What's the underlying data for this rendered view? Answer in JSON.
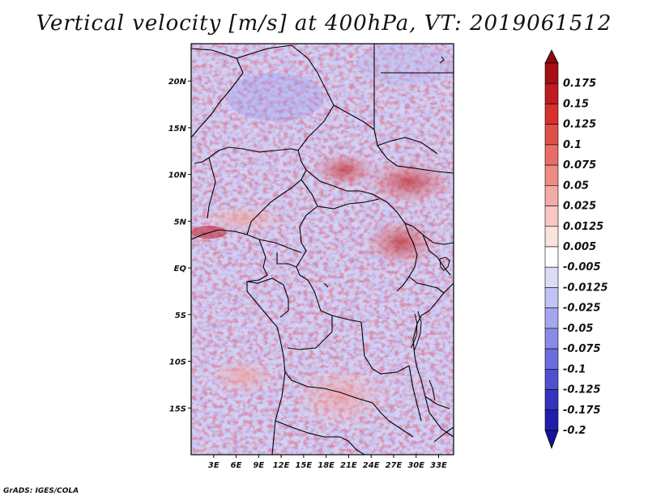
{
  "title": "Vertical velocity [m/s] at 400hPa, VT: 2019061512",
  "credit": "GrADS: IGES/COLA",
  "map": {
    "lon_range": [
      0,
      35
    ],
    "lat_range": [
      -20,
      24
    ],
    "lat_ticks": [
      {
        "value": 20,
        "label": "20N"
      },
      {
        "value": 15,
        "label": "15N"
      },
      {
        "value": 10,
        "label": "10N"
      },
      {
        "value": 5,
        "label": "5N"
      },
      {
        "value": 0,
        "label": "EQ"
      },
      {
        "value": -5,
        "label": "5S"
      },
      {
        "value": -10,
        "label": "10S"
      },
      {
        "value": -15,
        "label": "15S"
      }
    ],
    "lon_ticks": [
      {
        "value": 3,
        "label": "3E"
      },
      {
        "value": 6,
        "label": "6E"
      },
      {
        "value": 9,
        "label": "9E"
      },
      {
        "value": 12,
        "label": "12E"
      },
      {
        "value": 15,
        "label": "15E"
      },
      {
        "value": 18,
        "label": "18E"
      },
      {
        "value": 21,
        "label": "21E"
      },
      {
        "value": 24,
        "label": "24E"
      },
      {
        "value": 27,
        "label": "27E"
      },
      {
        "value": 30,
        "label": "30E"
      },
      {
        "value": 33,
        "label": "33E"
      }
    ]
  },
  "colorbar": {
    "levels": [
      {
        "label": "0.175",
        "color": "#a50f15"
      },
      {
        "label": "0.15",
        "color": "#c01a22"
      },
      {
        "label": "0.125",
        "color": "#d7302e"
      },
      {
        "label": "0.1",
        "color": "#e0504a"
      },
      {
        "label": "0.075",
        "color": "#e76d66"
      },
      {
        "label": "0.05",
        "color": "#ef8b84"
      },
      {
        "label": "0.025",
        "color": "#f4aba5"
      },
      {
        "label": "0.0125",
        "color": "#f8c7c2"
      },
      {
        "label": "0.005",
        "color": "#fbe2df"
      },
      {
        "label": "-0.005",
        "color": "#ffffff"
      },
      {
        "label": "-0.0125",
        "color": "#dcdcf8"
      },
      {
        "label": "-0.025",
        "color": "#c2c2f4"
      },
      {
        "label": "-0.05",
        "color": "#a6a6ef"
      },
      {
        "label": "-0.075",
        "color": "#8a8ae6"
      },
      {
        "label": "-0.1",
        "color": "#6c6cdc"
      },
      {
        "label": "-0.125",
        "color": "#5050cf"
      },
      {
        "label": "-0.175",
        "color": "#3232bd"
      },
      {
        "label": "-0.2",
        "color": "#1e1ea8"
      }
    ],
    "top_color": "#8b0a10",
    "bottom_color": "#14149a"
  }
}
